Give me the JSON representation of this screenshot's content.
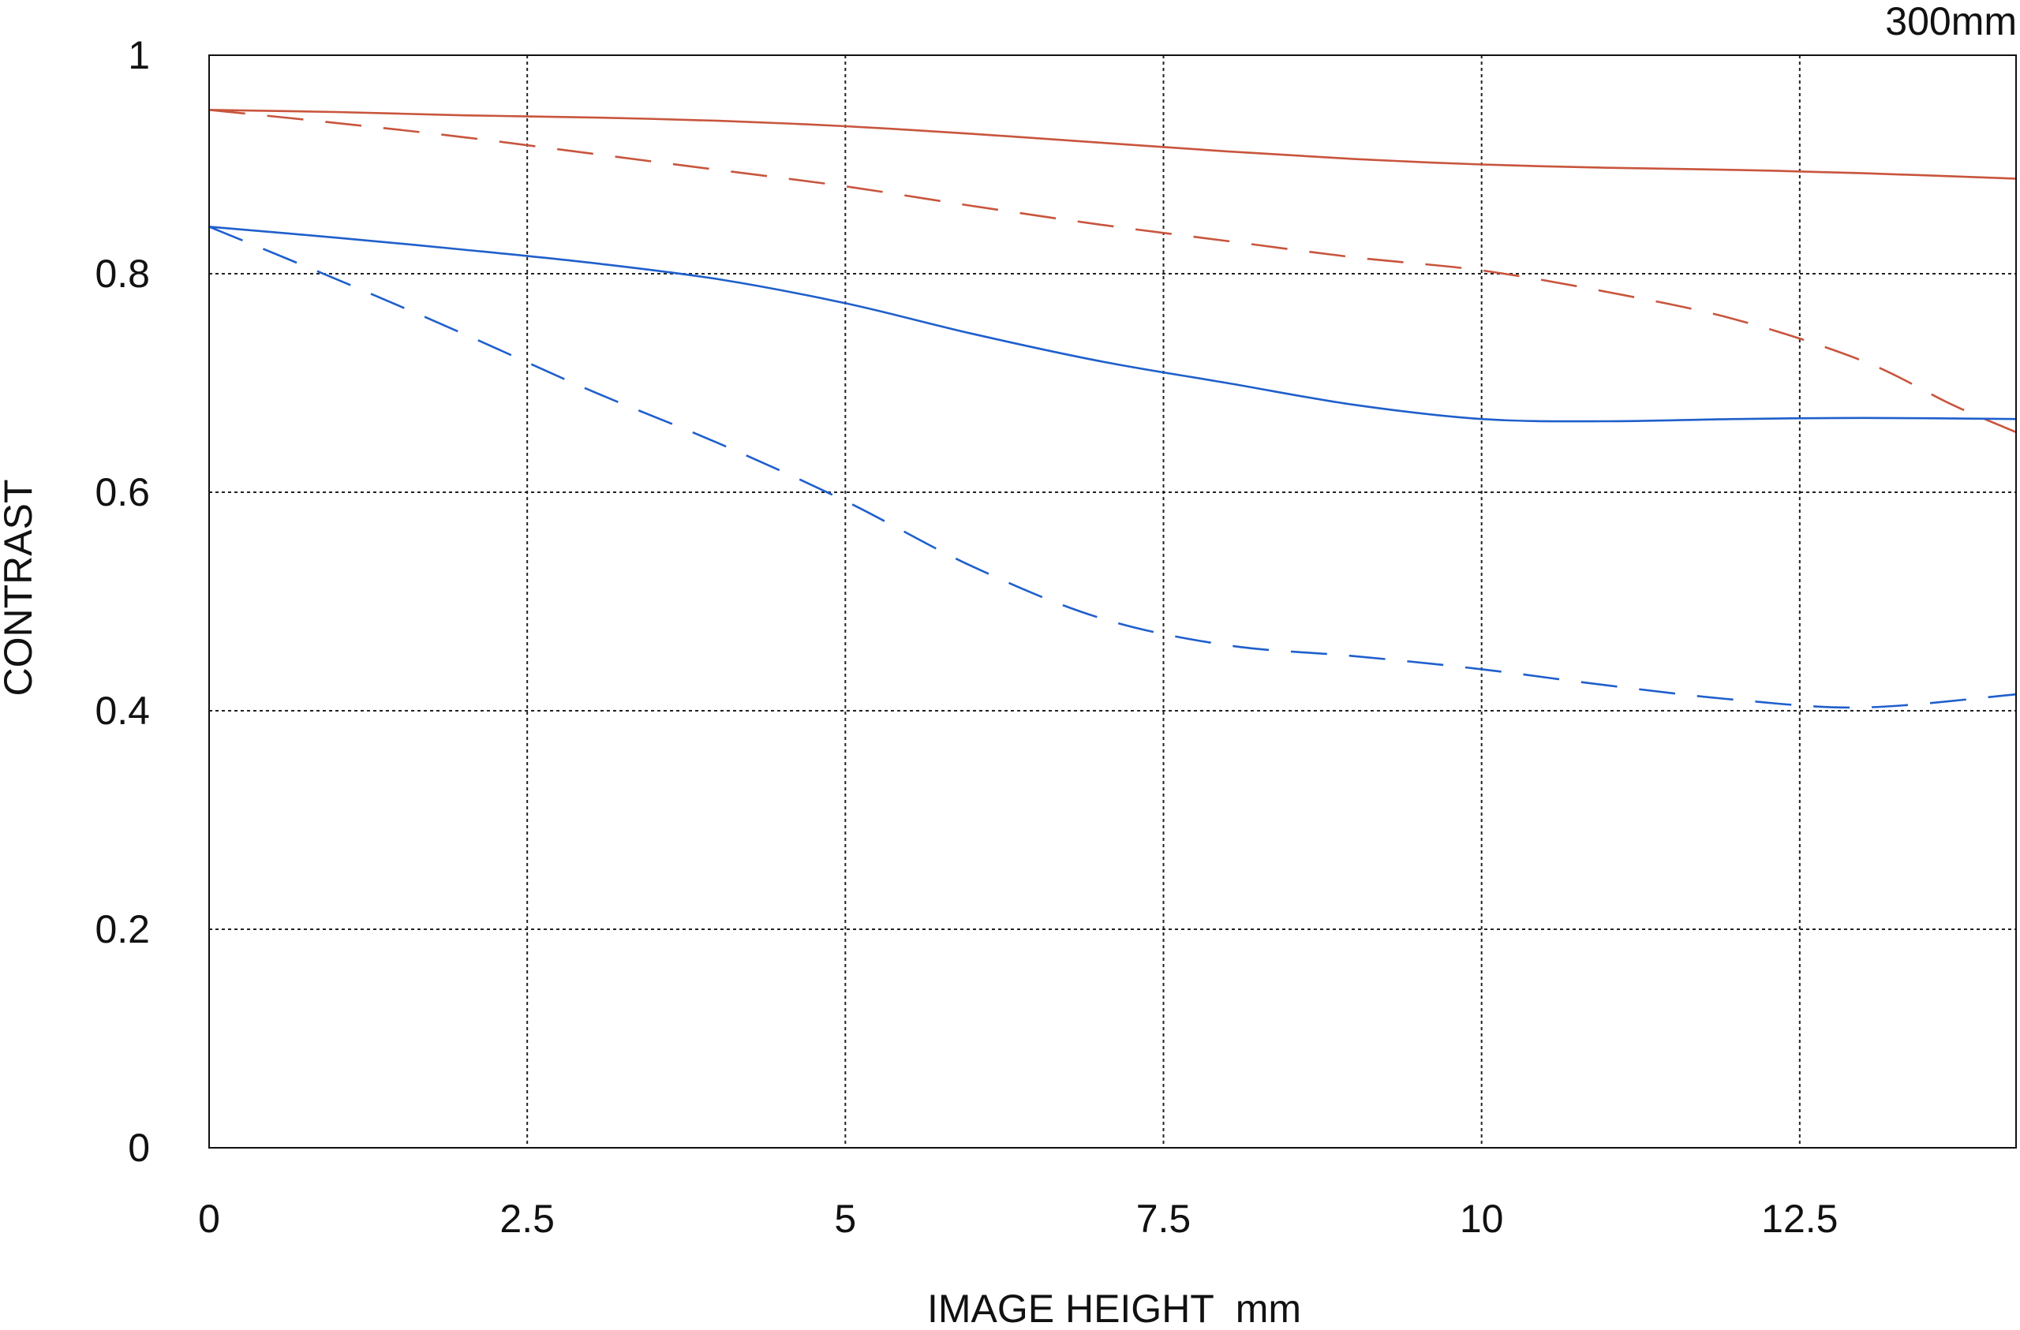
{
  "chart_data": {
    "type": "line",
    "title": "",
    "corner_label": "300mm",
    "xlabel": "IMAGE HEIGHT  mm",
    "ylabel": "CONTRAST",
    "xlim": [
      0,
      14.2
    ],
    "ylim": [
      0,
      1
    ],
    "xticks": [
      0,
      2.5,
      5,
      7.5,
      10,
      12.5
    ],
    "xtick_labels": [
      "0",
      "2.5",
      "5",
      "7.5",
      "10",
      "12.5"
    ],
    "yticks": [
      0,
      0.2,
      0.4,
      0.6,
      0.8,
      1
    ],
    "ytick_labels": [
      "0",
      "0.2",
      "0.4",
      "0.6",
      "0.8",
      "1"
    ],
    "grid": true,
    "legend": "none",
    "series": [
      {
        "color": "#c8553d",
        "dash": "solid",
        "points": [
          [
            0,
            0.95
          ],
          [
            1,
            0.948
          ],
          [
            2,
            0.945
          ],
          [
            3,
            0.943
          ],
          [
            4,
            0.94
          ],
          [
            5,
            0.935
          ],
          [
            6,
            0.928
          ],
          [
            7,
            0.92
          ],
          [
            8,
            0.912
          ],
          [
            9,
            0.905
          ],
          [
            10,
            0.9
          ],
          [
            11,
            0.897
          ],
          [
            12,
            0.895
          ],
          [
            13,
            0.892
          ],
          [
            14.2,
            0.887
          ]
        ]
      },
      {
        "color": "#c8553d",
        "dash": "dashed",
        "points": [
          [
            0,
            0.95
          ],
          [
            1,
            0.938
          ],
          [
            2,
            0.925
          ],
          [
            3,
            0.91
          ],
          [
            4,
            0.895
          ],
          [
            5,
            0.88
          ],
          [
            6,
            0.862
          ],
          [
            7,
            0.845
          ],
          [
            8,
            0.83
          ],
          [
            9,
            0.815
          ],
          [
            10,
            0.803
          ],
          [
            11,
            0.783
          ],
          [
            12,
            0.758
          ],
          [
            13,
            0.72
          ],
          [
            13.7,
            0.68
          ],
          [
            14.2,
            0.655
          ]
        ]
      },
      {
        "color": "#1f5fcc",
        "dash": "solid",
        "points": [
          [
            0,
            0.843
          ],
          [
            1,
            0.833
          ],
          [
            2,
            0.822
          ],
          [
            3,
            0.81
          ],
          [
            4,
            0.795
          ],
          [
            5,
            0.773
          ],
          [
            6,
            0.745
          ],
          [
            7,
            0.72
          ],
          [
            8,
            0.7
          ],
          [
            9,
            0.68
          ],
          [
            10,
            0.667
          ],
          [
            11,
            0.665
          ],
          [
            12,
            0.667
          ],
          [
            13,
            0.668
          ],
          [
            14.2,
            0.667
          ]
        ]
      },
      {
        "color": "#1f5fcc",
        "dash": "dashed",
        "points": [
          [
            0,
            0.843
          ],
          [
            1,
            0.795
          ],
          [
            2,
            0.745
          ],
          [
            3,
            0.693
          ],
          [
            4,
            0.645
          ],
          [
            5,
            0.592
          ],
          [
            6,
            0.532
          ],
          [
            7,
            0.485
          ],
          [
            8,
            0.46
          ],
          [
            9,
            0.45
          ],
          [
            10,
            0.438
          ],
          [
            11,
            0.423
          ],
          [
            12,
            0.41
          ],
          [
            13,
            0.403
          ],
          [
            14.2,
            0.415
          ]
        ]
      }
    ]
  }
}
